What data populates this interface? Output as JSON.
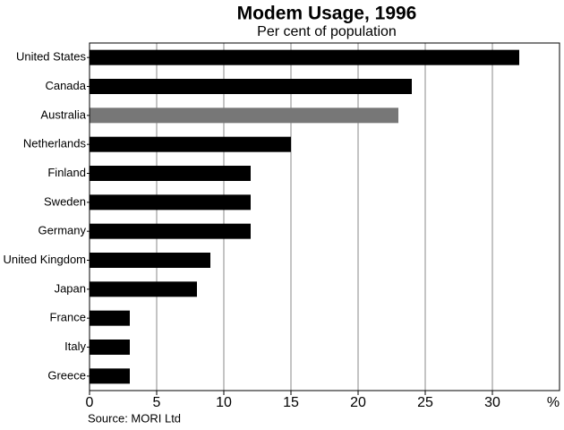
{
  "chart_data": {
    "type": "barh",
    "title": "Modem Usage, 1996",
    "subtitle": "Per cent of population",
    "categories": [
      "United States",
      "Canada",
      "Australia",
      "Netherlands",
      "Finland",
      "Sweden",
      "Germany",
      "United Kingdom",
      "Japan",
      "France",
      "Italy",
      "Greece"
    ],
    "values": [
      32,
      24,
      23,
      15,
      12,
      12,
      12,
      9,
      8,
      3,
      3,
      3
    ],
    "colors": [
      "#000000",
      "#000000",
      "#777777",
      "#000000",
      "#000000",
      "#000000",
      "#000000",
      "#000000",
      "#000000",
      "#000000",
      "#000000",
      "#000000"
    ],
    "xlim": [
      0,
      35
    ],
    "xticks": [
      0,
      5,
      10,
      15,
      20,
      25,
      30
    ],
    "x_label": "%",
    "grid": true,
    "source": "Source: MORI Ltd"
  }
}
